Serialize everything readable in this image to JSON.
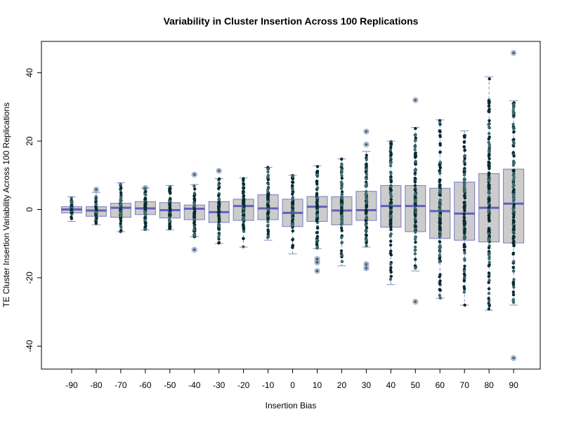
{
  "chart_data": {
    "type": "box",
    "title": "Variability in Cluster Insertion Across 100 Replications",
    "xlabel": "Insertion Bias",
    "ylabel": "TE Cluster Insertion Variability Across 100 Replications",
    "ylim": [
      -47,
      50
    ],
    "yticks": [
      -40,
      -20,
      0,
      20,
      40
    ],
    "categories": [
      "-90",
      "-80",
      "-70",
      "-60",
      "-50",
      "-40",
      "-30",
      "-20",
      "-10",
      "0",
      "10",
      "20",
      "30",
      "40",
      "50",
      "60",
      "70",
      "80",
      "90"
    ],
    "boxes": [
      {
        "min": -3.5,
        "q1": -1.0,
        "median": 0.0,
        "q3": 0.8,
        "max": 3.7,
        "outliers": []
      },
      {
        "min": -4.5,
        "q1": -2.0,
        "median": -0.3,
        "q3": 0.8,
        "max": 5.0,
        "outliers": [
          5.8
        ]
      },
      {
        "min": -6.5,
        "q1": -2.3,
        "median": 0.5,
        "q3": 1.8,
        "max": 7.8,
        "outliers": []
      },
      {
        "min": -6.0,
        "q1": -1.5,
        "median": 0.3,
        "q3": 2.3,
        "max": 6.3,
        "outliers": [
          6.3
        ]
      },
      {
        "min": -6.0,
        "q1": -2.5,
        "median": -0.2,
        "q3": 2.0,
        "max": 7.0,
        "outliers": []
      },
      {
        "min": -8.0,
        "q1": -3.0,
        "median": 0.2,
        "q3": 1.3,
        "max": 7.3,
        "outliers": [
          10.2,
          -11.8
        ]
      },
      {
        "min": -10.0,
        "q1": -3.8,
        "median": -0.8,
        "q3": 2.3,
        "max": 9.0,
        "outliers": [
          11.3
        ]
      },
      {
        "min": -11.0,
        "q1": -3.2,
        "median": 1.0,
        "q3": 3.0,
        "max": 9.2,
        "outliers": []
      },
      {
        "min": -9.0,
        "q1": -3.0,
        "median": 0.3,
        "q3": 4.3,
        "max": 12.3,
        "outliers": []
      },
      {
        "min": -13.0,
        "q1": -5.0,
        "median": -1.0,
        "q3": 3.0,
        "max": 10.0,
        "outliers": []
      },
      {
        "min": -11.5,
        "q1": -3.5,
        "median": 0.8,
        "q3": 3.8,
        "max": 12.8,
        "outliers": [
          -14.5,
          -15.5,
          -18.0
        ]
      },
      {
        "min": -16.5,
        "q1": -4.5,
        "median": -0.3,
        "q3": 3.7,
        "max": 14.8,
        "outliers": []
      },
      {
        "min": -11.0,
        "q1": -3.2,
        "median": -0.2,
        "q3": 5.3,
        "max": 17.0,
        "outliers": [
          19.0,
          22.8,
          -16.0,
          -17.2
        ]
      },
      {
        "min": -22.0,
        "q1": -5.2,
        "median": 1.0,
        "q3": 7.0,
        "max": 20.0,
        "outliers": []
      },
      {
        "min": -18.0,
        "q1": -6.5,
        "median": 1.0,
        "q3": 7.0,
        "max": 24.0,
        "outliers": [
          32.0,
          -27.0
        ]
      },
      {
        "min": -26.0,
        "q1": -8.5,
        "median": -0.5,
        "q3": 6.2,
        "max": 26.2,
        "outliers": []
      },
      {
        "min": -28.0,
        "q1": -9.0,
        "median": -1.2,
        "q3": 8.0,
        "max": 23.0,
        "outliers": []
      },
      {
        "min": -29.5,
        "q1": -9.5,
        "median": 0.5,
        "q3": 10.5,
        "max": 38.8,
        "outliers": []
      },
      {
        "min": -28.0,
        "q1": -9.8,
        "median": 1.7,
        "q3": 11.8,
        "max": 31.8,
        "outliers": [
          45.8,
          -43.5
        ]
      }
    ],
    "colors": {
      "box_fill": "#cccccc",
      "box_border": "#7b7bc0",
      "median": "#6060bf",
      "whisker": "#8a8ac8",
      "points_dark": "#0b2a33",
      "points_light": "#3c6a6e"
    }
  }
}
